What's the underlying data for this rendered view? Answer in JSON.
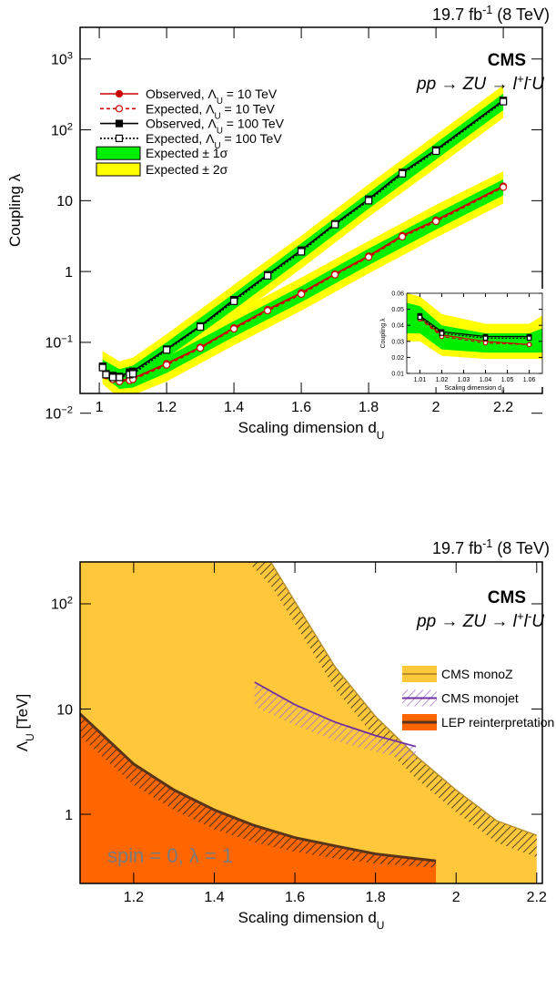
{
  "chart_data": [
    {
      "type": "line",
      "log_y": true,
      "lumi": "19.7 fb^{-1} (8 TeV)",
      "experiment": "CMS",
      "process": "pp → ZU → l^{+}l^{-}U",
      "xlabel": "Scaling dimension d_{U}",
      "ylabel": "Coupling λ",
      "xlim": [
        0.943,
        2.316
      ],
      "xticks": [
        1,
        1.2,
        1.4,
        1.6,
        1.8,
        2,
        2.2
      ],
      "ylim": [
        0.019,
        2800
      ],
      "yticks": [
        {
          "value": 0.01,
          "label": "10^{−2}"
        },
        {
          "value": 0.1,
          "label": "10^{−1}"
        },
        1,
        10,
        {
          "value": 100,
          "label": "10^{2}"
        },
        {
          "value": 1000,
          "label": "10^{3}"
        }
      ],
      "x": [
        1.01,
        1.02,
        1.04,
        1.06,
        1.09,
        1.1,
        1.2,
        1.3,
        1.4,
        1.5,
        1.6,
        1.7,
        1.8,
        1.9,
        2.0,
        2.2
      ],
      "bands": [
        {
          "name": "Expected ± 2σ",
          "color": "#ffff00",
          "regions": [
            {
              "x": [
                1.01,
                1.06,
                1.1,
                1.2,
                1.4,
                1.6,
                1.8,
                2.0,
                2.2
              ],
              "low": [
                0.026,
                0.019,
                0.021,
                0.046,
                0.22,
                1.1,
                5.9,
                29,
                147
              ],
              "high": [
                0.075,
                0.054,
                0.061,
                0.13,
                0.65,
                3.2,
                17,
                85,
                425
              ]
            },
            {
              "x": [
                1.01,
                1.06,
                1.1,
                1.2,
                1.4,
                1.6,
                1.8,
                2.0,
                2.2
              ],
              "low": [
                0.026,
                0.016,
                0.018,
                0.028,
                0.091,
                0.28,
                0.94,
                3.0,
                9.1
              ],
              "high": [
                0.075,
                0.048,
                0.051,
                0.082,
                0.26,
                0.82,
                2.7,
                8.7,
                26
              ]
            }
          ]
        },
        {
          "name": "Expected ± 1σ",
          "color": "#00ee00",
          "regions": [
            {
              "x": [
                1.01,
                1.06,
                1.1,
                1.2,
                1.4,
                1.6,
                1.8,
                2.0,
                2.2
              ],
              "low": [
                0.034,
                0.025,
                0.028,
                0.06,
                0.29,
                1.46,
                7.7,
                38,
                190
              ],
              "high": [
                0.057,
                0.042,
                0.047,
                0.1,
                0.49,
                2.5,
                13,
                65,
                325
              ]
            },
            {
              "x": [
                1.01,
                1.06,
                1.1,
                1.2,
                1.4,
                1.6,
                1.8,
                2.0,
                2.2
              ],
              "low": [
                0.034,
                0.022,
                0.023,
                0.037,
                0.12,
                0.37,
                1.23,
                3.9,
                11.9
              ],
              "high": [
                0.057,
                0.036,
                0.039,
                0.062,
                0.2,
                0.62,
                2.1,
                6.6,
                20
              ]
            }
          ]
        }
      ],
      "series": [
        {
          "name": "Observed, Λ_{U} = 10 TeV",
          "color": "#cc0000",
          "dashed": false,
          "marker": "circle",
          "marker_filled": true,
          "values": [
            0.045,
            0.035,
            0.031,
            0.029,
            0.03,
            0.031,
            0.05,
            0.085,
            0.16,
            0.29,
            0.5,
            0.92,
            1.65,
            3.2,
            5.3,
            16
          ]
        },
        {
          "name": "Expected, Λ_{U} = 10 TeV",
          "color": "#cc0000",
          "dashed": true,
          "marker": "circle",
          "marker_filled": false,
          "values": [
            0.044,
            0.034,
            0.03,
            0.028,
            0.029,
            0.03,
            0.048,
            0.083,
            0.155,
            0.28,
            0.48,
            0.9,
            1.6,
            3.1,
            5.1,
            15.5
          ]
        },
        {
          "name": "Observed, Λ_{U} = 100 TeV",
          "color": "#000000",
          "dashed": false,
          "marker": "square",
          "marker_filled": true,
          "values": [
            0.046,
            0.036,
            0.034,
            0.033,
            0.038,
            0.039,
            0.08,
            0.17,
            0.4,
            0.9,
            2.0,
            4.7,
            10.5,
            25,
            52,
            260
          ]
        },
        {
          "name": "Expected, Λ_{U} = 100 TeV",
          "color": "#000000",
          "dashed": true,
          "marker": "square",
          "marker_filled": false,
          "values": [
            0.044,
            0.035,
            0.032,
            0.032,
            0.035,
            0.036,
            0.078,
            0.165,
            0.38,
            0.87,
            1.9,
            4.6,
            10,
            24,
            50,
            250
          ]
        }
      ]
    },
    {
      "type": "line",
      "log_y": false,
      "xlabel": "Scaling dimension d_{U}",
      "ylabel": "Coupling λ",
      "xlim": [
        1.004,
        1.066
      ],
      "xticks": [
        1.01,
        1.02,
        1.03,
        1.04,
        1.05,
        1.06
      ],
      "ylim": [
        0.01,
        0.06
      ],
      "yticks": [
        0.01,
        0.02,
        0.03,
        0.04,
        0.05,
        0.06
      ],
      "x": [
        1.01,
        1.02,
        1.04,
        1.06
      ],
      "bands": [
        {
          "color": "#ffff00",
          "regions": [
            {
              "x": [
                1.004,
                1.01,
                1.02,
                1.04,
                1.06,
                1.066
              ],
              "low": [
                0.03,
                0.03,
                0.021,
                0.019,
                0.019,
                0.019
              ],
              "high": [
                0.06,
                0.058,
                0.047,
                0.041,
                0.041,
                0.046
              ]
            }
          ]
        },
        {
          "color": "#00ee00",
          "regions": [
            {
              "x": [
                1.004,
                1.01,
                1.02,
                1.04,
                1.06,
                1.066
              ],
              "low": [
                0.035,
                0.035,
                0.025,
                0.023,
                0.023,
                0.023
              ],
              "high": [
                0.054,
                0.052,
                0.04,
                0.035,
                0.035,
                0.038
              ]
            }
          ]
        }
      ],
      "series": [
        {
          "color": "#cc0000",
          "dashed": false,
          "marker": "circle",
          "marker_filled": true,
          "values": [
            0.045,
            0.034,
            0.03,
            0.028
          ]
        },
        {
          "color": "#cc0000",
          "dashed": true,
          "marker": "circle",
          "marker_filled": false,
          "values": [
            0.044,
            0.033,
            0.029,
            0.028
          ]
        },
        {
          "color": "#000000",
          "dashed": false,
          "marker": "square",
          "marker_filled": true,
          "values": [
            0.046,
            0.036,
            0.033,
            0.033
          ]
        },
        {
          "color": "#000000",
          "dashed": true,
          "marker": "square",
          "marker_filled": false,
          "values": [
            0.045,
            0.035,
            0.032,
            0.032
          ]
        }
      ]
    },
    {
      "type": "area",
      "log_y": true,
      "lumi": "19.7 fb^{-1} (8 TeV)",
      "experiment": "CMS",
      "process": "pp → ZU → l^{+}l^{-}U",
      "annotation": "spin = 0, λ = 1",
      "xlabel": "Scaling dimension d_{U}",
      "ylabel": "Λ_{U} [TeV]",
      "xlim": [
        1.067,
        2.214
      ],
      "xticks": [
        1.2,
        1.4,
        1.6,
        1.8,
        2,
        2.2
      ],
      "ylim": [
        0.22,
        250
      ],
      "yticks": [
        1,
        10,
        {
          "value": 100,
          "label": "10^{2}"
        }
      ],
      "series": [
        {
          "name": "CMS monoZ",
          "color": "#ffc83a",
          "edge_color": "#b8902a",
          "hatch_color": "#222222",
          "fill": true,
          "x": [
            1.48,
            1.54,
            1.6,
            1.7,
            1.8,
            1.9,
            2.0,
            2.1,
            2.2
          ],
          "values": [
            700,
            250,
            105,
            25,
            8.5,
            3.6,
            1.7,
            0.87,
            0.63
          ],
          "hatch_values": [
            260,
            150,
            65,
            15.5,
            5.3,
            2.2,
            1.05,
            0.54,
            0.39
          ]
        },
        {
          "name": "CMS monojet",
          "color": "#7030a0",
          "edge_color": "#7030a0",
          "hatch_color": "#a070c8",
          "fill": false,
          "x": [
            1.5,
            1.6,
            1.7,
            1.8,
            1.9
          ],
          "values": [
            18,
            11,
            7.5,
            5.6,
            4.4
          ],
          "hatch_values": [
            10.5,
            7,
            5,
            3.9,
            3.2
          ]
        },
        {
          "name": "LEP reinterpretation",
          "color": "#ff6600",
          "edge_color": "#5a3418",
          "hatch_color": "#222222",
          "fill": true,
          "x": [
            1.067,
            1.2,
            1.3,
            1.4,
            1.5,
            1.6,
            1.7,
            1.8,
            1.95
          ],
          "values": [
            9,
            3.0,
            1.7,
            1.1,
            0.78,
            0.6,
            0.5,
            0.42,
            0.36
          ],
          "hatch_values": [
            5.5,
            1.9,
            1.1,
            0.72,
            0.54,
            0.44,
            0.38,
            0.34,
            0.31
          ]
        }
      ]
    }
  ]
}
